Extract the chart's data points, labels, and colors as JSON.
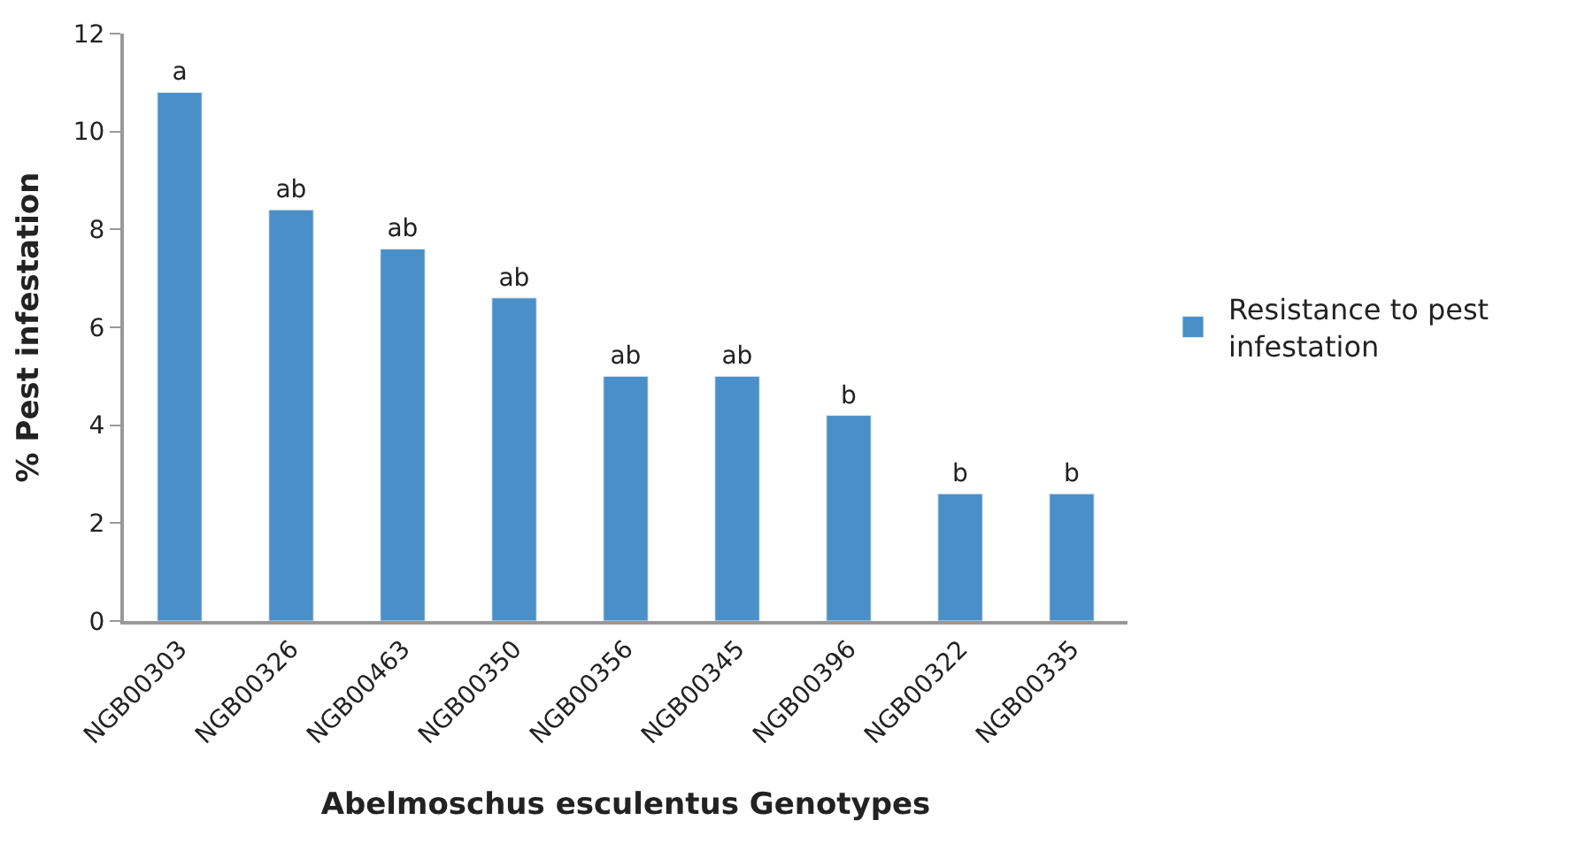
{
  "chart_data": {
    "type": "bar",
    "xlabel": "Abelmoschus esculentus Genotypes",
    "ylabel": "% Pest infestation",
    "categories": [
      "NGB00303",
      "NGB00326",
      "NGB00463",
      "NGB00350",
      "NGB00356",
      "NGB00345",
      "NGB00396",
      "NGB00322",
      "NGB00335"
    ],
    "series": [
      {
        "name": "Resistance to pest infestation",
        "color": "#4a8fc7",
        "values": [
          10.8,
          8.4,
          7.6,
          6.6,
          5.0,
          5.0,
          4.2,
          2.6,
          2.6
        ],
        "value_labels": [
          "a",
          "ab",
          "ab",
          "ab",
          "ab",
          "ab",
          "b",
          "b",
          "b"
        ]
      }
    ],
    "ylim": [
      0,
      12
    ],
    "yticks": [
      0,
      2,
      4,
      6,
      8,
      10,
      12
    ],
    "legend": "right"
  }
}
